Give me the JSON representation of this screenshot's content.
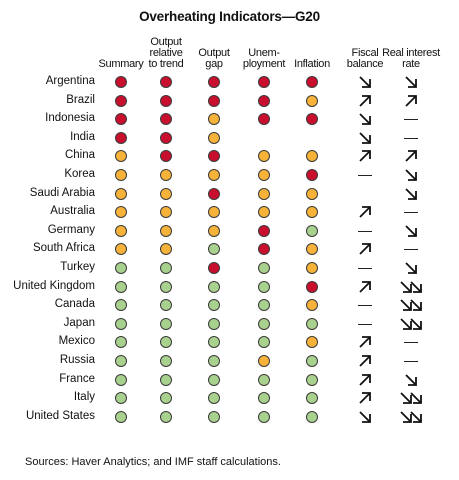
{
  "title": "Overheating Indicators—G20",
  "source": "Sources: Haver Analytics; and IMF staff calculations.",
  "colors": {
    "red": "#c8102e",
    "amber": "#f7b339",
    "green": "#a9d18e"
  },
  "chart_data": {
    "type": "table",
    "columns": [
      {
        "key": "summary",
        "label": "Summary"
      },
      {
        "key": "output_rel_trend",
        "label": "Output\nrelative\nto trend"
      },
      {
        "key": "output_gap",
        "label": "Output\ngap"
      },
      {
        "key": "unemployment",
        "label": "Unem-\nployment"
      },
      {
        "key": "inflation",
        "label": "Inflation"
      },
      {
        "key": "fiscal_balance",
        "label": "Fiscal\nbalance"
      },
      {
        "key": "real_interest_rate",
        "label": "Real interest\nrate"
      }
    ],
    "legend": {
      "dots": [
        "red",
        "amber",
        "green"
      ],
      "arrows": [
        "up",
        "down",
        "flat"
      ]
    },
    "rows": [
      {
        "country": "Argentina",
        "dots": [
          "red",
          "red",
          "red",
          "red",
          "red"
        ],
        "fiscal": [
          "down"
        ],
        "rate": [
          "down"
        ]
      },
      {
        "country": "Brazil",
        "dots": [
          "red",
          "red",
          "red",
          "red",
          "amber"
        ],
        "fiscal": [
          "up"
        ],
        "rate": [
          "up"
        ]
      },
      {
        "country": "Indonesia",
        "dots": [
          "red",
          "red",
          "amber",
          "red",
          "red"
        ],
        "fiscal": [
          "down"
        ],
        "rate": [
          "flat"
        ]
      },
      {
        "country": "India",
        "dots": [
          "red",
          "red",
          "amber",
          "",
          ""
        ],
        "fiscal": [
          "down"
        ],
        "rate": [
          "flat"
        ]
      },
      {
        "country": "China",
        "dots": [
          "amber",
          "red",
          "red",
          "amber",
          "amber"
        ],
        "fiscal": [
          "up"
        ],
        "rate": [
          "up"
        ]
      },
      {
        "country": "Korea",
        "dots": [
          "amber",
          "amber",
          "amber",
          "amber",
          "red"
        ],
        "fiscal": [
          "flat"
        ],
        "rate": [
          "down"
        ]
      },
      {
        "country": "Saudi Arabia",
        "dots": [
          "amber",
          "amber",
          "red",
          "amber",
          "amber"
        ],
        "fiscal": [],
        "rate": [
          "down"
        ]
      },
      {
        "country": "Australia",
        "dots": [
          "amber",
          "amber",
          "amber",
          "amber",
          "amber"
        ],
        "fiscal": [
          "up"
        ],
        "rate": [
          "flat"
        ]
      },
      {
        "country": "Germany",
        "dots": [
          "amber",
          "amber",
          "amber",
          "red",
          "green"
        ],
        "fiscal": [
          "flat"
        ],
        "rate": [
          "down"
        ]
      },
      {
        "country": "South Africa",
        "dots": [
          "amber",
          "amber",
          "green",
          "red",
          "amber"
        ],
        "fiscal": [
          "up"
        ],
        "rate": [
          "flat"
        ]
      },
      {
        "country": "Turkey",
        "dots": [
          "green",
          "green",
          "red",
          "green",
          "amber"
        ],
        "fiscal": [
          "flat"
        ],
        "rate": [
          "down"
        ]
      },
      {
        "country": "United Kingdom",
        "dots": [
          "green",
          "green",
          "green",
          "green",
          "red"
        ],
        "fiscal": [
          "up"
        ],
        "rate": [
          "down",
          "down"
        ]
      },
      {
        "country": "Canada",
        "dots": [
          "green",
          "green",
          "green",
          "green",
          "amber"
        ],
        "fiscal": [
          "flat"
        ],
        "rate": [
          "down",
          "down"
        ]
      },
      {
        "country": "Japan",
        "dots": [
          "green",
          "green",
          "green",
          "green",
          "green"
        ],
        "fiscal": [
          "flat"
        ],
        "rate": [
          "down",
          "down"
        ]
      },
      {
        "country": "Mexico",
        "dots": [
          "green",
          "green",
          "green",
          "green",
          "amber"
        ],
        "fiscal": [
          "up"
        ],
        "rate": [
          "flat"
        ]
      },
      {
        "country": "Russia",
        "dots": [
          "green",
          "green",
          "green",
          "amber",
          "green"
        ],
        "fiscal": [
          "up"
        ],
        "rate": [
          "flat"
        ]
      },
      {
        "country": "France",
        "dots": [
          "green",
          "green",
          "green",
          "green",
          "green"
        ],
        "fiscal": [
          "up"
        ],
        "rate": [
          "down"
        ]
      },
      {
        "country": "Italy",
        "dots": [
          "green",
          "green",
          "green",
          "green",
          "green"
        ],
        "fiscal": [
          "up"
        ],
        "rate": [
          "down",
          "down"
        ]
      },
      {
        "country": "United States",
        "dots": [
          "green",
          "green",
          "green",
          "green",
          "green"
        ],
        "fiscal": [
          "down"
        ],
        "rate": [
          "down",
          "down"
        ]
      }
    ]
  }
}
